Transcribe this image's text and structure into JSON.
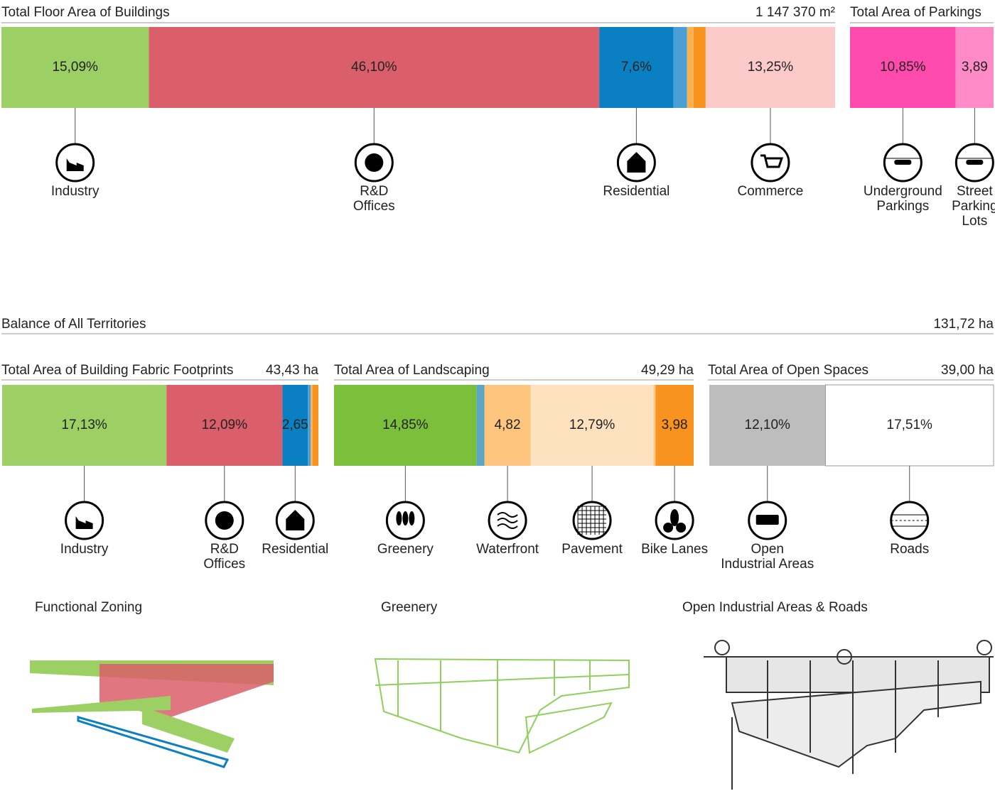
{
  "sections": [
    {
      "title": "Total Floor Area of Buildings",
      "total": "1 147 370 m²",
      "segments": [
        {
          "value": 15.09,
          "label": "15,09%",
          "color": "#9ccf64",
          "name": "Industry"
        },
        {
          "value": 46.1,
          "label": "46,10%",
          "color": "#da5f6a",
          "name": "R&D\nOffices"
        },
        {
          "value": 7.6,
          "label": "7,6%",
          "color": "#0a7fc2",
          "name": "Residential"
        },
        {
          "value": 1.39,
          "color": "#4a9fd6"
        },
        {
          "value": 0.66,
          "color": "#f9b24f"
        },
        {
          "value": 1.24,
          "color": "#f7931e"
        },
        {
          "value": 13.25,
          "label": "13,25%",
          "color": "#fdcaca",
          "name": "Commerce"
        }
      ]
    },
    {
      "title": "Total Area of Parkings",
      "segments": [
        {
          "value": 10.85,
          "label": "10,85%",
          "color": "#ff4aae",
          "name": "Underground\nParkings"
        },
        {
          "value": 3.89,
          "label": "3,89",
          "color": "#ff8ac8",
          "name": "Street\nParking\nLots"
        }
      ]
    },
    {
      "title": "Total Area of Building Fabric Footprints",
      "total": "43,43 ha",
      "segments": [
        {
          "value": 17.13,
          "label": "17,13%",
          "color": "#9ccf64",
          "name": "Industry"
        },
        {
          "value": 12.09,
          "label": "12,09%",
          "color": "#da5f6a",
          "name": "R&D\nOffices"
        },
        {
          "value": 2.65,
          "label": "2,65",
          "color": "#0a7fc2",
          "name": "Residential"
        },
        {
          "value": 0.3,
          "color": "#4a9fd6"
        },
        {
          "value": 0.2,
          "color": "#f9b24f"
        },
        {
          "value": 0.6,
          "color": "#f7931e"
        }
      ]
    },
    {
      "title": "Total Area of Landscaping",
      "total": "49,29 ha",
      "segments": [
        {
          "value": 14.85,
          "label": "14,85%",
          "color": "#7cbf3a",
          "name": "Greenery"
        },
        {
          "value": 0.8,
          "color": "#5aa5c8"
        },
        {
          "value": 4.82,
          "label": "4,82",
          "color": "#fdc57e",
          "name": "Waterfront"
        },
        {
          "value": 12.79,
          "label": "12,79%",
          "color": "#fee1bf",
          "name": "Pavement"
        },
        {
          "value": 0.2,
          "color": "#fcc98a"
        },
        {
          "value": 3.98,
          "label": "3,98",
          "color": "#f7931e",
          "name": "Bike Lanes"
        }
      ]
    },
    {
      "title": "Total Area of Open Spaces",
      "total": "39,00 ha",
      "segments": [
        {
          "value": 12.1,
          "label": "12,10%",
          "color": "#bdbdbd",
          "name": "Open\nIndustrial Areas"
        },
        {
          "value": 17.51,
          "label": "17,51%",
          "color": "#ffffff",
          "name": "Roads"
        }
      ]
    }
  ],
  "balance": {
    "title": "Balance of All Territories",
    "total": "131,72 ha"
  },
  "maps": [
    {
      "title": "Functional Zoning"
    },
    {
      "title": "Greenery"
    },
    {
      "title": "Open Industrial Areas & Roads"
    }
  ]
}
